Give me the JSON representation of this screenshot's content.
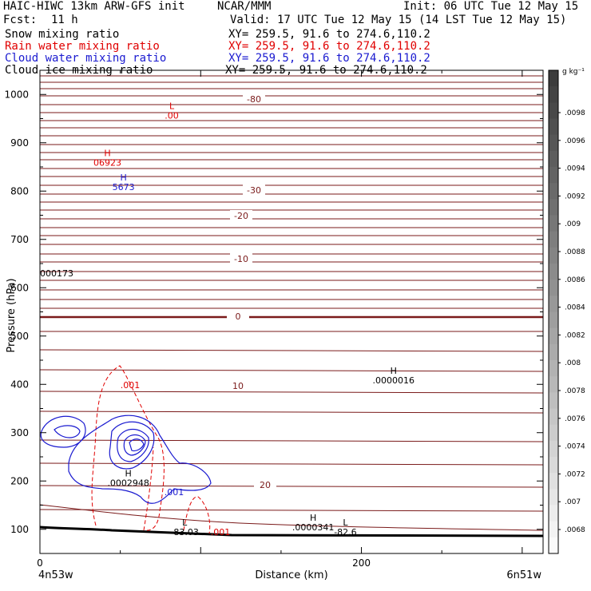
{
  "header": {
    "title_left": "HAIC-HIWC 13km ARW-GFS init",
    "title_mid": "NCAR/MMM",
    "init": "Init: 06 UTC Tue 12 May 15",
    "fcst": "Fcst:",
    "fcst_val": "11 h",
    "valid": "Valid: 17 UTC Tue 12 May 15 (14 LST Tue 12 May 15)",
    "fields": [
      {
        "label": "Snow mixing ratio",
        "xy": "XY= 259.5, 91.6 to 274.6,110.2",
        "color": "#000000"
      },
      {
        "label": "Rain water mixing ratio",
        "xy": "XY= 259.5, 91.6 to 274.6,110.2",
        "color": "#e00000"
      },
      {
        "label": "Cloud water mixing ratio",
        "xy": "XY= 259.5, 91.6 to 274.6,110.2",
        "color": "#1a1ad0"
      },
      {
        "label": "Cloud ice mixing ratio",
        "xy": "XY= 259.5, 91.6 to 274.6,110.2",
        "color": "#000000"
      }
    ]
  },
  "chart_data": {
    "type": "contour",
    "ylabel": "Pressure (hPa)",
    "xlabel": "Distance (km)",
    "x_start_label": "4n53w",
    "x_end_label": "6n51w",
    "y_ticks": [
      "100",
      "200",
      "300",
      "400",
      "500",
      "600",
      "700",
      "800",
      "900",
      "1000"
    ],
    "x_ticks": [
      "0",
      "200"
    ],
    "xlim": [
      0,
      313
    ],
    "ylim": [
      1050,
      50
    ],
    "colorbar": {
      "unit": "g kg⁻¹",
      "labels": [
        ".0098",
        ".0096",
        ".0094",
        ".0092",
        ".009",
        ".0088",
        ".0086",
        ".0084",
        ".0082",
        ".008",
        ".0078",
        ".0076",
        ".0074",
        ".0072",
        ".007",
        ".0068"
      ]
    },
    "isotherm_labels": [
      "-80",
      "-30",
      "-20",
      "-10",
      "0",
      "10",
      "20"
    ],
    "annotations": [
      {
        "type": "L",
        "value": "-83.03",
        "x": 90,
        "p": 98
      },
      {
        "type": "L",
        "value": "-82.6",
        "x": 190,
        "p": 98
      },
      {
        "type": "H",
        "value": ".0000341",
        "x": 170,
        "p": 108
      },
      {
        "type": "H",
        "value": ".0002948",
        "x": 55,
        "p": 200
      },
      {
        "type": "H",
        "value": ".0000016",
        "x": 220,
        "p": 412
      },
      {
        "type": "H",
        "value": "5673",
        "x": 52,
        "p": 812,
        "color": "#1a1ad0"
      },
      {
        "type": "H",
        "value": "06923",
        "x": 42,
        "p": 862,
        "color": "#e00000"
      },
      {
        "type": "L",
        "value": ".00",
        "x": 82,
        "p": 960,
        "color": "#e00000"
      }
    ],
    "edge_label": "000173",
    "rain_labels": [
      ".001",
      ".001"
    ],
    "cloud_label": ".001"
  }
}
